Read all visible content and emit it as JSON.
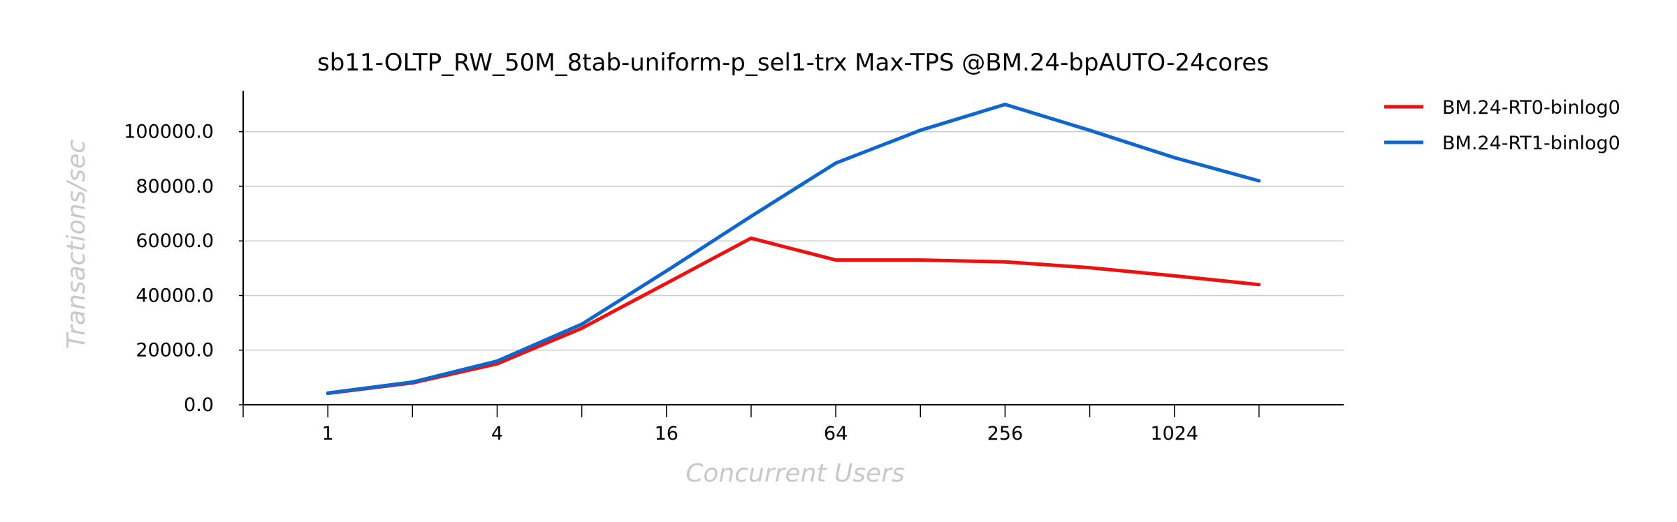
{
  "chart_data": {
    "type": "line",
    "title": "sb11-OLTP_RW_50M_8tab-uniform-p_sel1-trx Max-TPS @BM.24-bpAUTO-24cores",
    "xlabel": "Concurrent Users",
    "ylabel": "Transactions/sec",
    "x_scale": "log2",
    "x": [
      1,
      2,
      4,
      8,
      16,
      32,
      64,
      128,
      256,
      512,
      1024,
      2048
    ],
    "x_tick_labels": [
      "1",
      "4",
      "16",
      "64",
      "256",
      "1024"
    ],
    "x_tick_values": [
      1,
      4,
      16,
      64,
      256,
      1024
    ],
    "xlim": [
      0.5,
      4096
    ],
    "y_tick_labels": [
      "0.0",
      "20000.0",
      "40000.0",
      "60000.0",
      "80000.0",
      "100000.0"
    ],
    "y_tick_values": [
      0,
      20000,
      40000,
      60000,
      80000,
      100000
    ],
    "ylim": [
      0,
      115000
    ],
    "grid": "horizontal",
    "legend_position": "right, outside plot",
    "series": [
      {
        "name": "BM.24-RT0-binlog0",
        "color": "#ee1111",
        "values": [
          4200,
          8000,
          15000,
          28000,
          44500,
          61000,
          53000,
          53000,
          52300,
          50200,
          47200,
          44000
        ]
      },
      {
        "name": "BM.24-RT1-binlog0",
        "color": "#0f66cc",
        "values": [
          4300,
          8300,
          16000,
          29500,
          49000,
          69000,
          88500,
          100500,
          110000,
          100500,
          90500,
          82000
        ]
      }
    ]
  }
}
